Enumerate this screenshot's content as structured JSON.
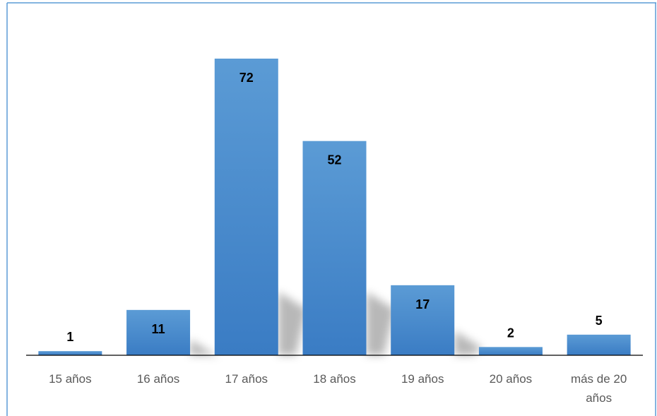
{
  "chart_data": {
    "type": "bar",
    "title": "",
    "xlabel": "",
    "ylabel": "",
    "categories": [
      "15 años",
      "16 años",
      "17 años",
      "18 años",
      "19 años",
      "20 años",
      "más de 20 años"
    ],
    "values": [
      1,
      11,
      72,
      52,
      17,
      2,
      5
    ],
    "ylim": [
      0,
      72
    ],
    "grid": false,
    "legend": "none",
    "data_labels": true,
    "colors": {
      "bar": "#4a8fd6",
      "bar_light": "#5b9bd5",
      "bar_dark": "#3a7cc4",
      "frame": "#5b9bd5",
      "axis": "#000000",
      "label": "#595959"
    }
  }
}
